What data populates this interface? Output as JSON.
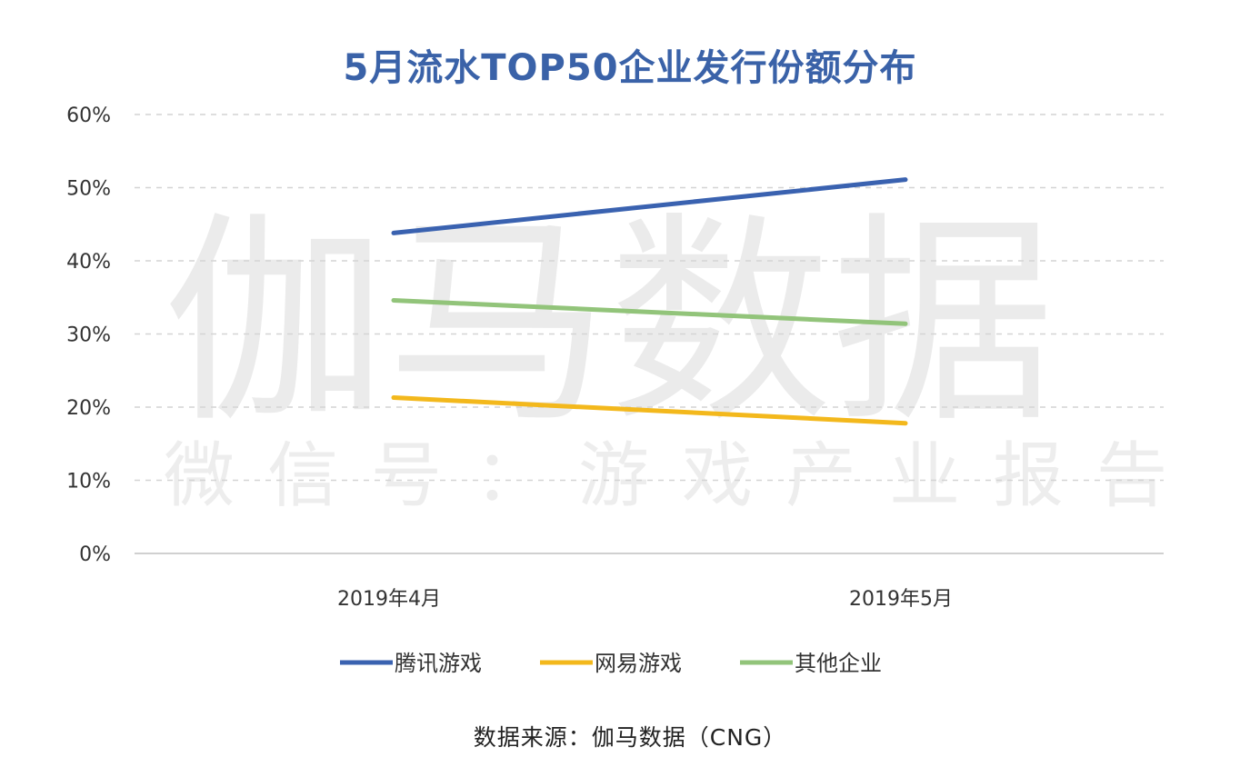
{
  "chart_data": {
    "type": "line",
    "title": "5月流水TOP50企业发行份额分布",
    "categories": [
      "2019年4月",
      "2019年5月"
    ],
    "series": [
      {
        "name": "腾讯游戏",
        "values": [
          43.8,
          51.1
        ],
        "color": "#3a62b0"
      },
      {
        "name": "网易游戏",
        "values": [
          21.3,
          17.8
        ],
        "color": "#f3b81c"
      },
      {
        "name": "其他企业",
        "values": [
          34.6,
          31.4
        ],
        "color": "#92c47a"
      }
    ],
    "ylim": [
      0,
      60
    ],
    "yticks": [
      "0%",
      "10%",
      "20%",
      "30%",
      "40%",
      "50%",
      "60%"
    ],
    "yunit": "%",
    "grid": true,
    "legend_position": "bottom",
    "xlabel": "",
    "ylabel": ""
  },
  "watermark": {
    "main": "伽马数据",
    "sub": "微信号：游戏产业报告"
  },
  "source": "数据来源：伽马数据（CNG）"
}
